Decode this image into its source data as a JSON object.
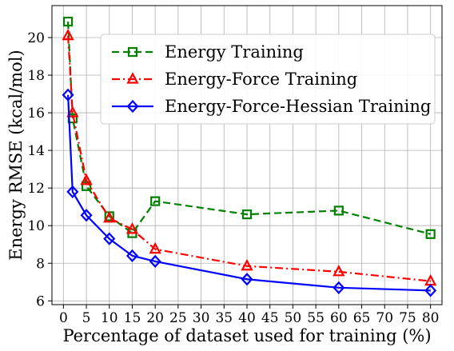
{
  "chart_data": {
    "type": "line",
    "title": "",
    "xlabel": "Percentage of dataset used for training (%)",
    "ylabel": "Energy RMSE (kcal/mol)",
    "xlim": [
      -2.5,
      82.5
    ],
    "ylim": [
      5.8,
      21.7
    ],
    "xticks": [
      0,
      5,
      10,
      15,
      20,
      25,
      30,
      35,
      40,
      45,
      50,
      55,
      60,
      65,
      70,
      75,
      80
    ],
    "yticks": [
      6,
      8,
      10,
      12,
      14,
      16,
      18,
      20
    ],
    "grid": true,
    "legend_position": "top-right",
    "series": [
      {
        "name": "Energy Training",
        "color": "#008000",
        "line_style": "dashed",
        "marker": "square",
        "x": [
          1,
          2,
          5,
          10,
          15,
          20,
          40,
          60,
          80
        ],
        "y": [
          20.85,
          15.7,
          12.1,
          10.5,
          9.6,
          11.3,
          10.6,
          10.8,
          9.55
        ]
      },
      {
        "name": "Energy-Force Training",
        "color": "#ff0000",
        "line_style": "dashdot",
        "marker": "triangle",
        "x": [
          1,
          2,
          5,
          10,
          15,
          20,
          40,
          60,
          80
        ],
        "y": [
          20.1,
          16.0,
          12.4,
          10.4,
          9.8,
          8.75,
          7.85,
          7.55,
          7.05
        ]
      },
      {
        "name": "Energy-Force-Hessian Training",
        "color": "#0000ff",
        "line_style": "solid",
        "marker": "diamond",
        "x": [
          1,
          2,
          5,
          10,
          15,
          20,
          40,
          60,
          80
        ],
        "y": [
          16.95,
          11.8,
          10.55,
          9.3,
          8.4,
          8.1,
          7.15,
          6.7,
          6.55
        ]
      }
    ]
  }
}
